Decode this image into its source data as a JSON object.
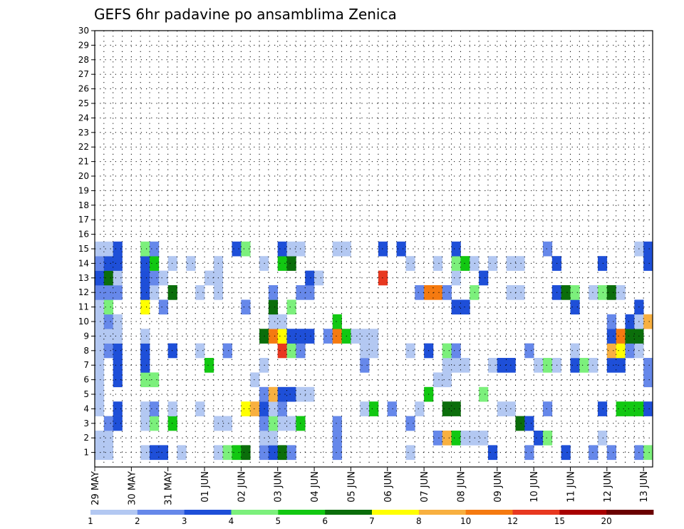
{
  "chart_data": {
    "type": "heatmap",
    "title": "GEFS 6hr padavine po ansamblima Zenica",
    "xlabel": "",
    "ylabel": "",
    "x_tick_labels": [
      "29 MAY",
      "30 MAY",
      "31 MAY",
      "01 JUN",
      "02 JUN",
      "03 JUN",
      "04 JUN",
      "05 JUN",
      "06 JUN",
      "07 JUN",
      "08 JUN",
      "09 JUN",
      "10 JUN",
      "11 JUN",
      "12 JUN",
      "13 JUN"
    ],
    "y_tick_labels": [
      1,
      2,
      3,
      4,
      5,
      6,
      7,
      8,
      9,
      10,
      11,
      12,
      13,
      14,
      15,
      16,
      17,
      18,
      19,
      20,
      21,
      22,
      23,
      24,
      25,
      26,
      27,
      28,
      29,
      30
    ],
    "ylim": [
      0,
      30
    ],
    "x_steps": 61,
    "grid": true,
    "colorbar": {
      "labels": [
        "1",
        "2",
        "3",
        "4",
        "5",
        "6",
        "7",
        "8",
        "10",
        "12",
        "15",
        "20"
      ],
      "colors": [
        "#b3c8f2",
        "#6688ea",
        "#1e4fd8",
        "#7cf07c",
        "#12c812",
        "#0b6e0b",
        "#ffff00",
        "#f8b040",
        "#f57a10",
        "#e83820",
        "#a80000",
        "#6a0000"
      ]
    },
    "member_nonzero_steps": {
      "1": [
        [
          1,
          1
        ],
        [
          2,
          1
        ],
        [
          6,
          1
        ],
        [
          7,
          3
        ],
        [
          8,
          3
        ],
        [
          10,
          1
        ],
        [
          14,
          1
        ],
        [
          15,
          4
        ],
        [
          16,
          5
        ],
        [
          17,
          6
        ],
        [
          19,
          2
        ],
        [
          20,
          3
        ],
        [
          21,
          6
        ],
        [
          22,
          2
        ],
        [
          27,
          2
        ],
        [
          35,
          1
        ],
        [
          44,
          3
        ],
        [
          48,
          2
        ],
        [
          52,
          3
        ],
        [
          55,
          2
        ],
        [
          57,
          2
        ],
        [
          60,
          2
        ],
        [
          61,
          4
        ]
      ],
      "2": [
        [
          1,
          1
        ],
        [
          2,
          1
        ],
        [
          19,
          1
        ],
        [
          20,
          1
        ],
        [
          27,
          2
        ],
        [
          38,
          2
        ],
        [
          39,
          8
        ],
        [
          40,
          5
        ],
        [
          41,
          1
        ],
        [
          42,
          1
        ],
        [
          43,
          1
        ],
        [
          49,
          3
        ],
        [
          50,
          4
        ],
        [
          56,
          1
        ]
      ],
      "3": [
        [
          2,
          2
        ],
        [
          3,
          3
        ],
        [
          6,
          1
        ],
        [
          7,
          4
        ],
        [
          9,
          5
        ],
        [
          14,
          1
        ],
        [
          15,
          1
        ],
        [
          19,
          2
        ],
        [
          20,
          4
        ],
        [
          21,
          1
        ],
        [
          22,
          1
        ],
        [
          23,
          5
        ],
        [
          27,
          2
        ],
        [
          35,
          2
        ],
        [
          47,
          6
        ],
        [
          48,
          3
        ]
      ],
      "4": [
        [
          1,
          1
        ],
        [
          3,
          3
        ],
        [
          6,
          1
        ],
        [
          7,
          2
        ],
        [
          9,
          1
        ],
        [
          12,
          1
        ],
        [
          17,
          7
        ],
        [
          18,
          8
        ],
        [
          19,
          3
        ],
        [
          20,
          1
        ],
        [
          21,
          2
        ],
        [
          30,
          1
        ],
        [
          31,
          5
        ],
        [
          33,
          2
        ],
        [
          36,
          1
        ],
        [
          39,
          6
        ],
        [
          40,
          6
        ],
        [
          45,
          1
        ],
        [
          46,
          1
        ],
        [
          50,
          2
        ],
        [
          56,
          3
        ],
        [
          58,
          5
        ],
        [
          59,
          5
        ],
        [
          60,
          5
        ],
        [
          61,
          3
        ]
      ],
      "5": [
        [
          1,
          1
        ],
        [
          19,
          2
        ],
        [
          20,
          8
        ],
        [
          21,
          3
        ],
        [
          22,
          3
        ],
        [
          23,
          1
        ],
        [
          24,
          1
        ],
        [
          37,
          5
        ],
        [
          43,
          4
        ]
      ],
      "6": [
        [
          1,
          1
        ],
        [
          3,
          3
        ],
        [
          6,
          4
        ],
        [
          7,
          4
        ],
        [
          18,
          1
        ],
        [
          38,
          1
        ],
        [
          39,
          1
        ],
        [
          61,
          2
        ]
      ],
      "7": [
        [
          1,
          1
        ],
        [
          3,
          3
        ],
        [
          6,
          3
        ],
        [
          13,
          5
        ],
        [
          19,
          1
        ],
        [
          30,
          2
        ],
        [
          39,
          1
        ],
        [
          40,
          1
        ],
        [
          41,
          1
        ],
        [
          44,
          1
        ],
        [
          45,
          3
        ],
        [
          46,
          3
        ],
        [
          49,
          1
        ],
        [
          50,
          4
        ],
        [
          51,
          1
        ],
        [
          53,
          3
        ],
        [
          54,
          4
        ],
        [
          55,
          1
        ],
        [
          57,
          3
        ],
        [
          58,
          3
        ],
        [
          61,
          2
        ]
      ],
      "8": [
        [
          1,
          1
        ],
        [
          2,
          2
        ],
        [
          3,
          3
        ],
        [
          6,
          3
        ],
        [
          9,
          3
        ],
        [
          12,
          1
        ],
        [
          15,
          2
        ],
        [
          21,
          10
        ],
        [
          22,
          4
        ],
        [
          23,
          2
        ],
        [
          30,
          1
        ],
        [
          31,
          1
        ],
        [
          35,
          1
        ],
        [
          37,
          3
        ],
        [
          39,
          4
        ],
        [
          40,
          2
        ],
        [
          48,
          2
        ],
        [
          53,
          1
        ],
        [
          57,
          8
        ],
        [
          58,
          7
        ],
        [
          59,
          2
        ],
        [
          60,
          1
        ]
      ],
      "9": [
        [
          1,
          1
        ],
        [
          2,
          1
        ],
        [
          3,
          1
        ],
        [
          6,
          1
        ],
        [
          19,
          6
        ],
        [
          20,
          9
        ],
        [
          21,
          7
        ],
        [
          22,
          3
        ],
        [
          23,
          3
        ],
        [
          24,
          3
        ],
        [
          26,
          2
        ],
        [
          27,
          9
        ],
        [
          28,
          5
        ],
        [
          29,
          1
        ],
        [
          30,
          1
        ],
        [
          31,
          1
        ],
        [
          57,
          3
        ],
        [
          58,
          9
        ],
        [
          59,
          6
        ],
        [
          60,
          6
        ]
      ],
      "10": [
        [
          1,
          1
        ],
        [
          2,
          2
        ],
        [
          3,
          1
        ],
        [
          20,
          1
        ],
        [
          21,
          1
        ],
        [
          27,
          5
        ],
        [
          57,
          2
        ],
        [
          59,
          3
        ],
        [
          60,
          1
        ],
        [
          61,
          8
        ]
      ],
      "11": [
        [
          1,
          1
        ],
        [
          2,
          4
        ],
        [
          6,
          7
        ],
        [
          8,
          2
        ],
        [
          17,
          2
        ],
        [
          20,
          6
        ],
        [
          22,
          4
        ],
        [
          40,
          3
        ],
        [
          41,
          3
        ],
        [
          53,
          3
        ],
        [
          60,
          3
        ]
      ],
      "12": [
        [
          1,
          2
        ],
        [
          2,
          2
        ],
        [
          3,
          2
        ],
        [
          6,
          3
        ],
        [
          7,
          1
        ],
        [
          9,
          6
        ],
        [
          12,
          1
        ],
        [
          14,
          1
        ],
        [
          20,
          2
        ],
        [
          23,
          2
        ],
        [
          24,
          2
        ],
        [
          36,
          2
        ],
        [
          37,
          9
        ],
        [
          38,
          9
        ],
        [
          39,
          2
        ],
        [
          42,
          4
        ],
        [
          46,
          1
        ],
        [
          47,
          1
        ],
        [
          51,
          3
        ],
        [
          52,
          6
        ],
        [
          53,
          4
        ],
        [
          55,
          1
        ],
        [
          56,
          4
        ],
        [
          57,
          6
        ],
        [
          58,
          1
        ]
      ],
      "13": [
        [
          1,
          3
        ],
        [
          2,
          6
        ],
        [
          3,
          1
        ],
        [
          6,
          3
        ],
        [
          7,
          2
        ],
        [
          8,
          1
        ],
        [
          13,
          1
        ],
        [
          14,
          1
        ],
        [
          24,
          3
        ],
        [
          25,
          1
        ],
        [
          32,
          10
        ],
        [
          40,
          1
        ],
        [
          43,
          3
        ]
      ],
      "14": [
        [
          1,
          2
        ],
        [
          2,
          3
        ],
        [
          3,
          3
        ],
        [
          6,
          3
        ],
        [
          7,
          5
        ],
        [
          9,
          1
        ],
        [
          11,
          1
        ],
        [
          14,
          1
        ],
        [
          19,
          1
        ],
        [
          21,
          5
        ],
        [
          22,
          6
        ],
        [
          35,
          1
        ],
        [
          38,
          1
        ],
        [
          40,
          4
        ],
        [
          41,
          5
        ],
        [
          42,
          1
        ],
        [
          44,
          1
        ],
        [
          46,
          1
        ],
        [
          47,
          1
        ],
        [
          51,
          3
        ],
        [
          56,
          3
        ],
        [
          61,
          3
        ]
      ],
      "15": [
        [
          1,
          1
        ],
        [
          2,
          1
        ],
        [
          3,
          3
        ],
        [
          6,
          4
        ],
        [
          7,
          2
        ],
        [
          16,
          3
        ],
        [
          17,
          4
        ],
        [
          21,
          3
        ],
        [
          22,
          1
        ],
        [
          23,
          1
        ],
        [
          27,
          1
        ],
        [
          28,
          1
        ],
        [
          32,
          3
        ],
        [
          34,
          3
        ],
        [
          40,
          3
        ],
        [
          50,
          2
        ],
        [
          60,
          1
        ],
        [
          61,
          3
        ]
      ]
    }
  }
}
